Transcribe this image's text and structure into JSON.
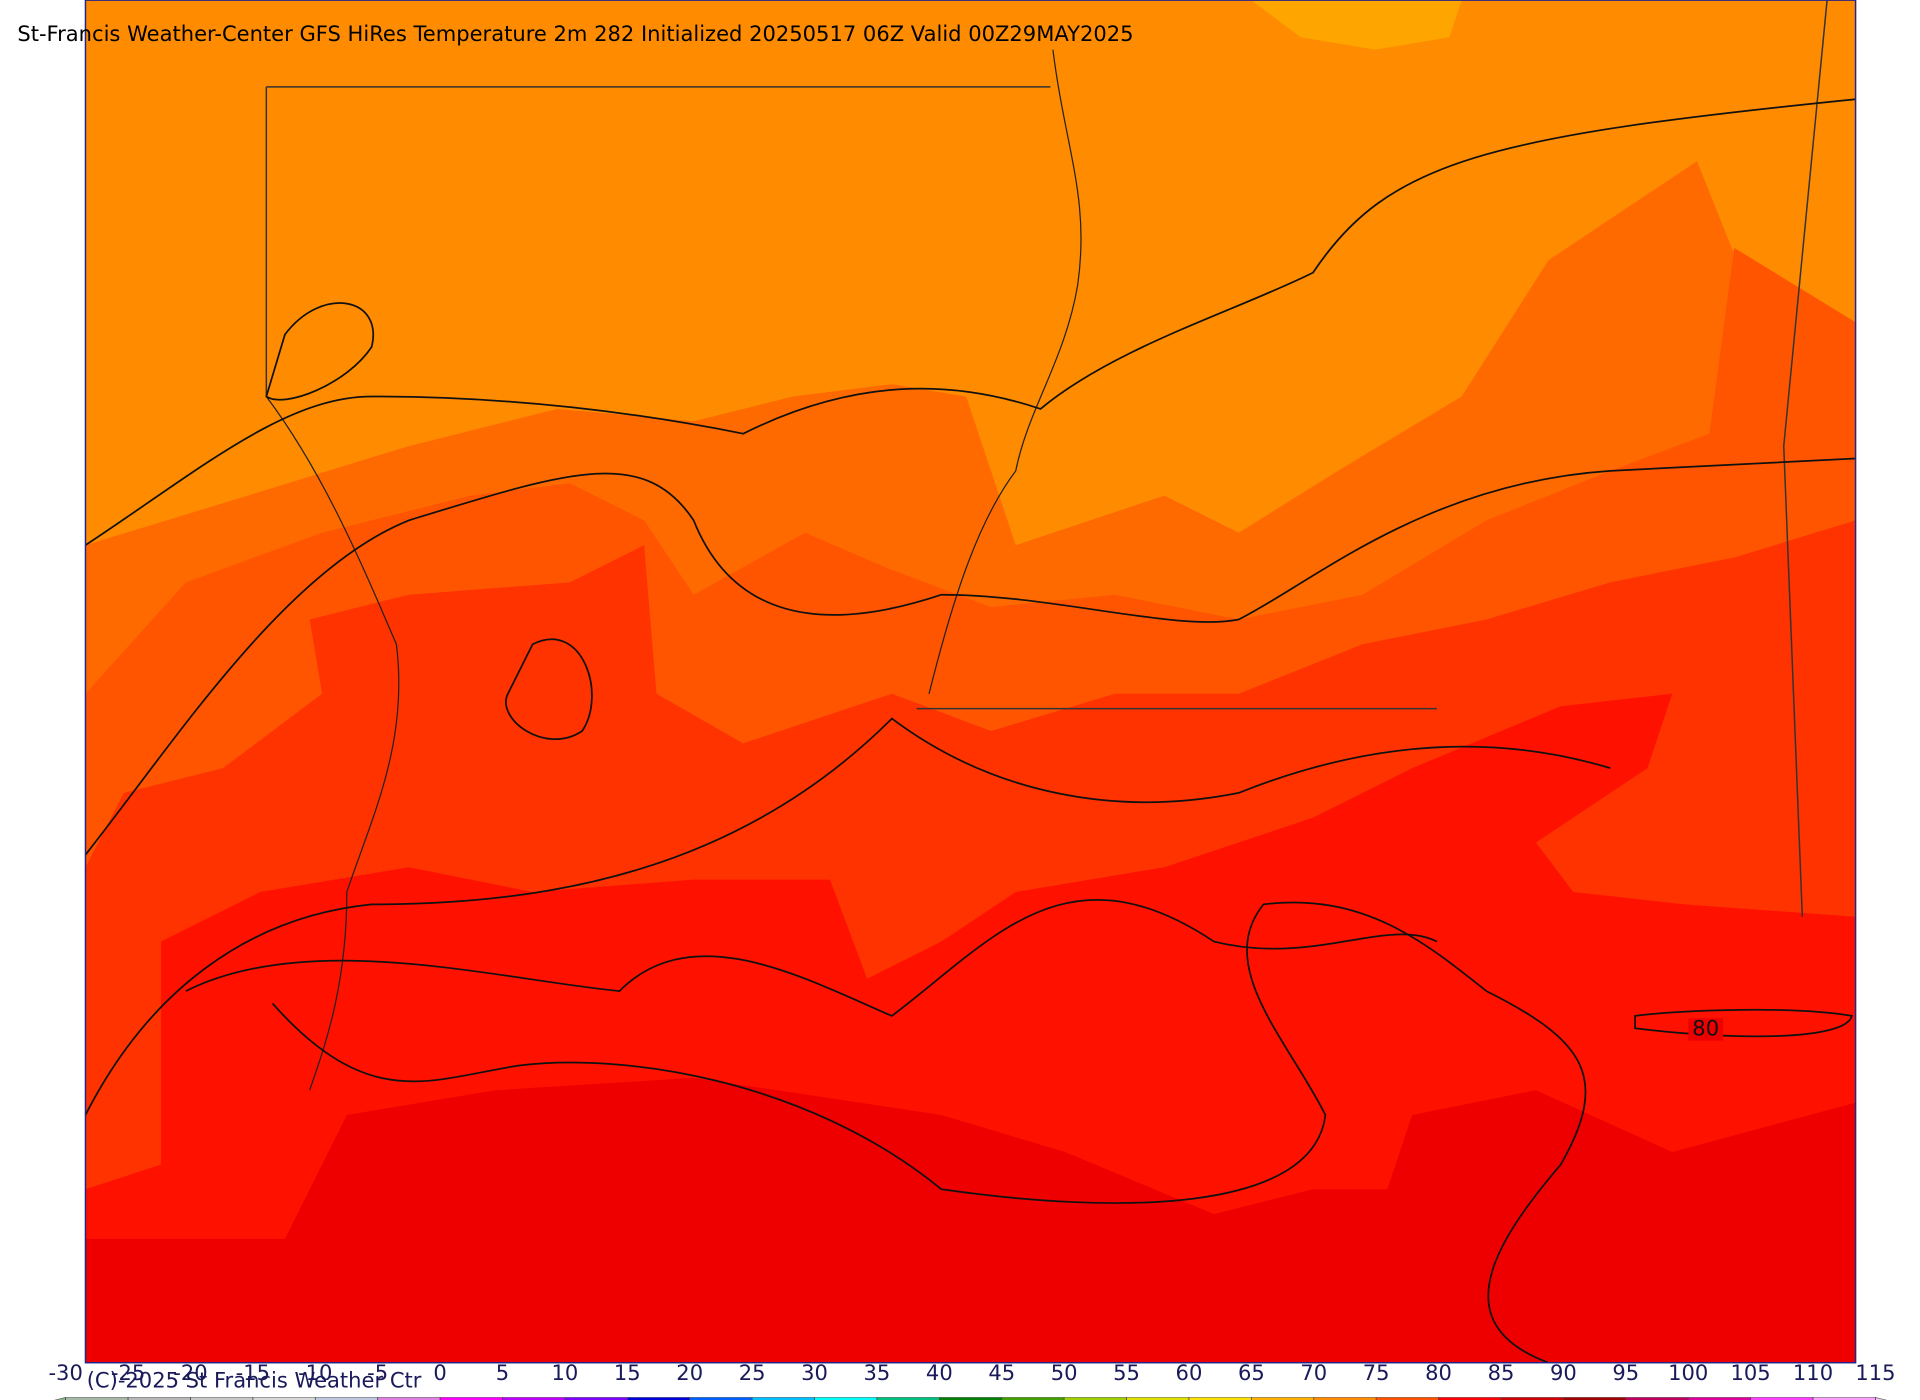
{
  "header": {
    "title": "St-Francis Weather-Center GFS HiRes Temperature 2m  282 Initialized 20250517 06Z Valid 00Z29MAY2025"
  },
  "contour_labels": [
    "80"
  ],
  "colorbar": {
    "ticks": [
      -30,
      -25,
      -20,
      -15,
      -10,
      -5,
      0,
      5,
      10,
      15,
      20,
      25,
      30,
      35,
      40,
      45,
      50,
      55,
      60,
      65,
      70,
      75,
      80,
      85,
      90,
      95,
      100,
      105,
      110,
      115
    ],
    "colors": [
      "#a8b8a8",
      "#b8b8b8",
      "#c8c8c8",
      "#d8d8d8",
      "#c0c8e0",
      "#e080e0",
      "#ff00ff",
      "#c000ff",
      "#8000ff",
      "#0000dd",
      "#0060ff",
      "#00c0ff",
      "#00ffff",
      "#00c080",
      "#008000",
      "#40a000",
      "#a0d000",
      "#e0e000",
      "#ffe000",
      "#ffb000",
      "#ff8c00",
      "#ff5000",
      "#ff0000",
      "#d00000",
      "#a00000",
      "#c00060",
      "#e000a0",
      "#ff40ff",
      "#ffa0ff"
    ],
    "low_color": "#88b888",
    "high_color": "#f0c8f0"
  },
  "footer": {
    "copyright": "(C)-2025 St Francis Weather Ctr"
  }
}
